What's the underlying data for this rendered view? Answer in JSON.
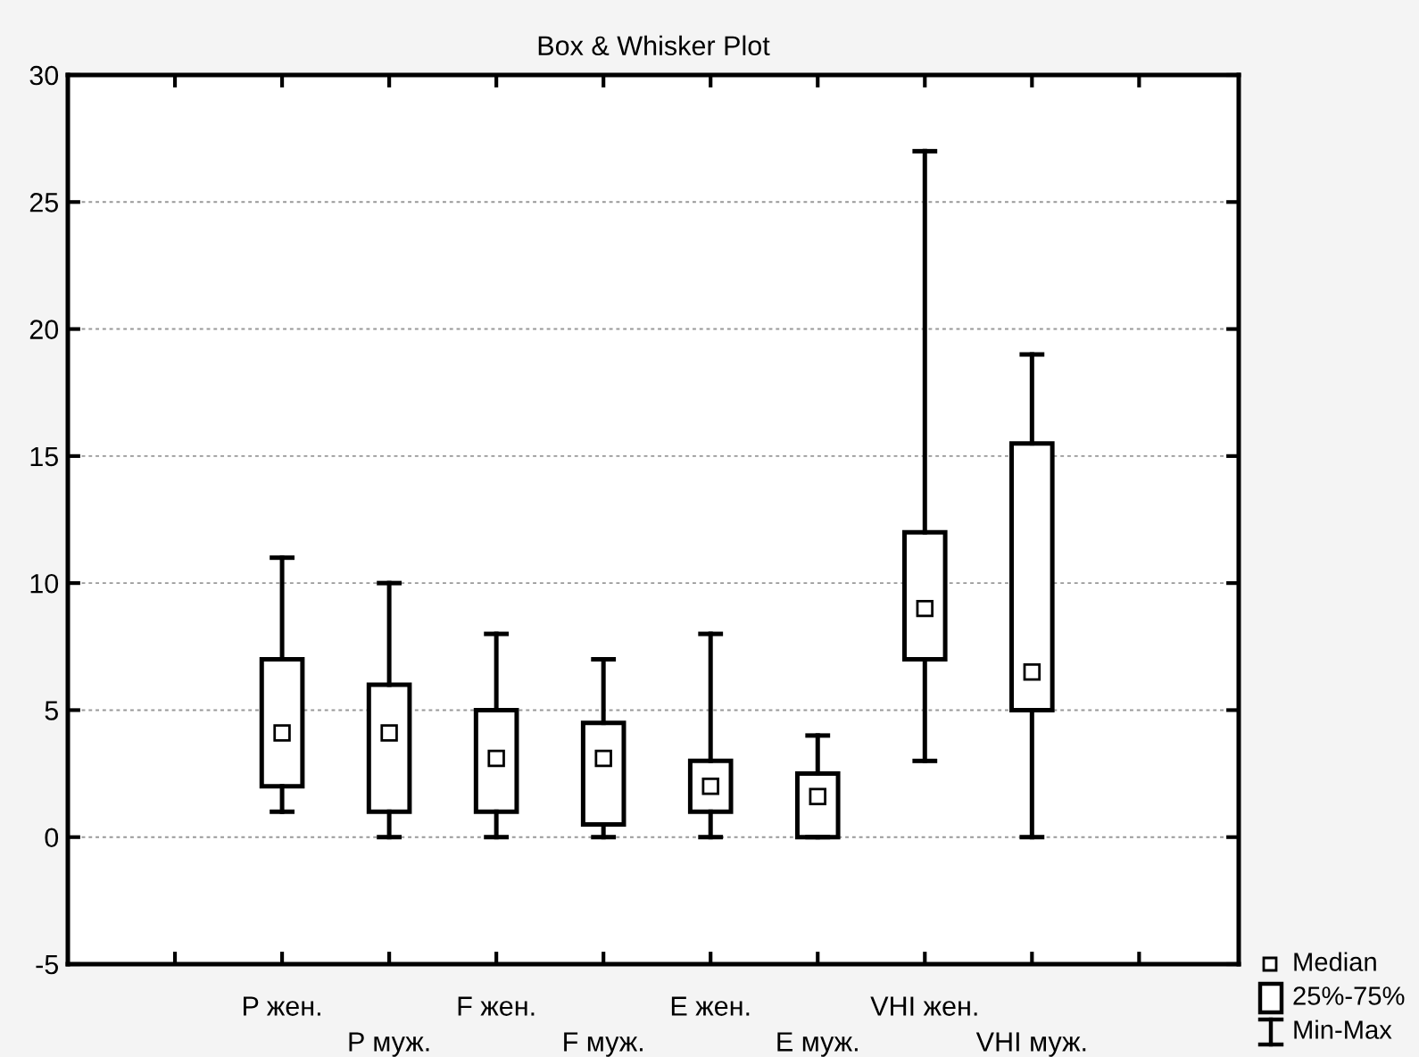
{
  "chart_data": {
    "type": "box",
    "title": "Box & Whisker Plot",
    "categories": [
      "P жен.",
      "P муж.",
      "F жен.",
      "F муж.",
      "E жен.",
      "E муж.",
      "VHI жен.",
      "VHI муж."
    ],
    "boxes": [
      {
        "low": 1,
        "q1": 2,
        "median": 4.1,
        "q3": 7,
        "high": 11
      },
      {
        "low": 0,
        "q1": 1,
        "median": 4.1,
        "q3": 6,
        "high": 10
      },
      {
        "low": 0,
        "q1": 1,
        "median": 3.1,
        "q3": 5,
        "high": 8
      },
      {
        "low": 0,
        "q1": 0.5,
        "median": 3.1,
        "q3": 4.5,
        "high": 7
      },
      {
        "low": 0,
        "q1": 1,
        "median": 2,
        "q3": 3,
        "high": 8
      },
      {
        "low": 0,
        "q1": 0,
        "median": 1.6,
        "q3": 2.5,
        "high": 4
      },
      {
        "low": 3,
        "q1": 7,
        "median": 9,
        "q3": 12,
        "high": 27
      },
      {
        "low": 0,
        "q1": 5,
        "median": 6.5,
        "q3": 15.5,
        "high": 19
      }
    ],
    "ylim": [
      -5,
      30
    ],
    "yticks": [
      -5,
      0,
      5,
      10,
      15,
      20,
      25,
      30
    ],
    "grid": "y",
    "annotations": [
      "Median",
      "25%-75%",
      "Min-Max"
    ]
  }
}
